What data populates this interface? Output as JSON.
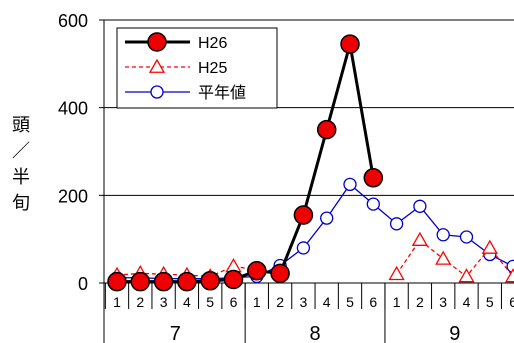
{
  "chart_data": {
    "type": "line",
    "title": "",
    "ylabel_chars": [
      "頭",
      "／",
      "半",
      "旬"
    ],
    "ylim": [
      0,
      600
    ],
    "yticks": [
      0,
      200,
      400,
      600
    ],
    "grid": true,
    "legend_position": "top-left",
    "categories": [
      "1",
      "2",
      "3",
      "4",
      "5",
      "6",
      "1",
      "2",
      "3",
      "4",
      "5",
      "6",
      "1",
      "2",
      "3",
      "4",
      "5",
      "6"
    ],
    "months": [
      {
        "label": "7",
        "from": 0,
        "to": 5
      },
      {
        "label": "8",
        "from": 6,
        "to": 11
      },
      {
        "label": "9",
        "from": 12,
        "to": 17
      }
    ],
    "series": [
      {
        "name": "H26",
        "color": "#000000",
        "marker": "filled-circle",
        "marker_fill": "#ee0000",
        "values": [
          3,
          3,
          3,
          3,
          5,
          8,
          28,
          22,
          155,
          350,
          545,
          240,
          null,
          null,
          null,
          null,
          null,
          null
        ]
      },
      {
        "name": "H25",
        "color": "#ff0000",
        "marker": "open-triangle",
        "dashed": true,
        "values": [
          18,
          22,
          20,
          18,
          15,
          38,
          30,
          null,
          null,
          null,
          null,
          null,
          20,
          98,
          55,
          15,
          80,
          15
        ]
      },
      {
        "name": "平年値",
        "color": "#0000cc",
        "marker": "open-circle",
        "values": [
          12,
          12,
          10,
          10,
          10,
          12,
          15,
          40,
          80,
          148,
          225,
          180,
          135,
          175,
          110,
          105,
          65,
          38
        ]
      }
    ]
  }
}
